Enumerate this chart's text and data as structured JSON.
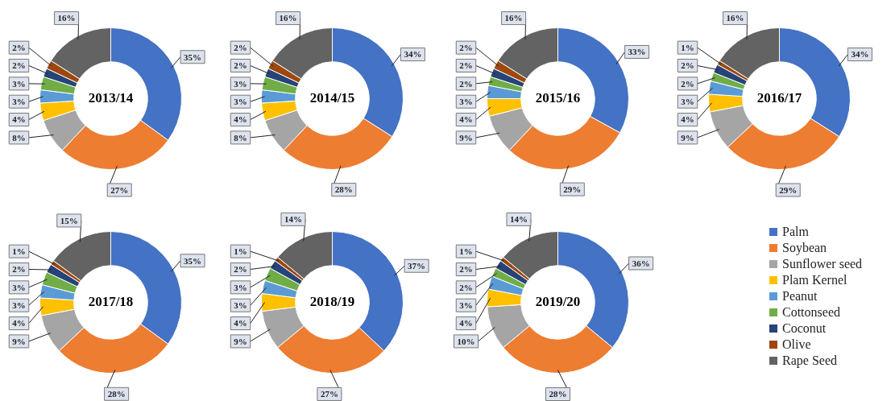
{
  "chart_data": [
    {
      "type": "donut",
      "title": "2013/14",
      "categories": [
        null,
        null,
        null,
        null,
        null,
        null,
        null,
        null,
        null
      ],
      "values": [
        35,
        27,
        8,
        4,
        3,
        3,
        2,
        2,
        16
      ],
      "value_labels": [
        "35%",
        "27%",
        "8%",
        "4%",
        "3%",
        "3%",
        "2%",
        "2%",
        "16%"
      ],
      "colors": [
        "#4472c4",
        "#ed7d31",
        "#a5a5a5",
        "#ffc000",
        "#5b9bd5",
        "#70ad47",
        "#264478",
        "#9e480e",
        "#636363"
      ]
    },
    {
      "type": "donut",
      "title": "2014/15",
      "categories": [
        null,
        null,
        null,
        null,
        null,
        null,
        null,
        null,
        null
      ],
      "values": [
        34,
        28,
        8,
        4,
        3,
        3,
        2,
        2,
        16
      ],
      "value_labels": [
        "34%",
        "28%",
        "8%",
        "4%",
        "3%",
        "3%",
        "2%",
        "2%",
        "16%"
      ],
      "colors": [
        "#4472c4",
        "#ed7d31",
        "#a5a5a5",
        "#ffc000",
        "#5b9bd5",
        "#70ad47",
        "#264478",
        "#9e480e",
        "#636363"
      ]
    },
    {
      "type": "donut",
      "title": "2015/16",
      "categories": [
        null,
        null,
        null,
        null,
        null,
        null,
        null,
        null,
        null
      ],
      "values": [
        33,
        29,
        9,
        4,
        3,
        2,
        2,
        2,
        16
      ],
      "value_labels": [
        "33%",
        "29%",
        "9%",
        "4%",
        "3%",
        "2%",
        "2%",
        "2%",
        "16%"
      ],
      "colors": [
        "#4472c4",
        "#ed7d31",
        "#a5a5a5",
        "#ffc000",
        "#5b9bd5",
        "#70ad47",
        "#264478",
        "#9e480e",
        "#636363"
      ]
    },
    {
      "type": "donut",
      "title": "2016/17",
      "categories": [
        null,
        null,
        null,
        null,
        null,
        null,
        null,
        null,
        null
      ],
      "values": [
        34,
        29,
        9,
        4,
        3,
        2,
        2,
        1,
        16
      ],
      "value_labels": [
        "34%",
        "29%",
        "9%",
        "4%",
        "3%",
        "2%",
        "2%",
        "1%",
        "16%"
      ],
      "colors": [
        "#4472c4",
        "#ed7d31",
        "#a5a5a5",
        "#ffc000",
        "#5b9bd5",
        "#70ad47",
        "#264478",
        "#9e480e",
        "#636363"
      ]
    },
    {
      "type": "donut",
      "title": "2017/18",
      "categories": [
        null,
        null,
        null,
        null,
        null,
        null,
        null,
        null,
        null
      ],
      "values": [
        35,
        28,
        9,
        4,
        3,
        3,
        2,
        1,
        15
      ],
      "value_labels": [
        "35%",
        "28%",
        "9%",
        "4%",
        "3%",
        "3%",
        "2%",
        "1%",
        "15%"
      ],
      "colors": [
        "#4472c4",
        "#ed7d31",
        "#a5a5a5",
        "#ffc000",
        "#5b9bd5",
        "#70ad47",
        "#264478",
        "#9e480e",
        "#636363"
      ]
    },
    {
      "type": "donut",
      "title": "2018/19",
      "categories": [
        null,
        null,
        null,
        null,
        null,
        null,
        null,
        null,
        null
      ],
      "values": [
        37,
        27,
        9,
        4,
        3,
        3,
        2,
        1,
        14
      ],
      "value_labels": [
        "37%",
        "27%",
        "9%",
        "4%",
        "3%",
        "3%",
        "2%",
        "1%",
        "14%"
      ],
      "colors": [
        "#4472c4",
        "#ed7d31",
        "#a5a5a5",
        "#ffc000",
        "#5b9bd5",
        "#70ad47",
        "#264478",
        "#9e480e",
        "#636363"
      ]
    },
    {
      "type": "donut",
      "title": "2019/20",
      "categories": [
        "Palm",
        "Soybean",
        "Sunflower seed",
        "Plam Kernel",
        "Peanut",
        "Cottonseed",
        "Coconut",
        "Olive",
        "Rape Seed"
      ],
      "values": [
        36,
        28,
        10,
        4,
        3,
        2,
        2,
        1,
        14
      ],
      "value_labels": [
        "36%",
        "28%",
        "10%",
        "4%",
        "3%",
        "2%",
        "2%",
        "1%",
        "14%"
      ],
      "colors": [
        "#4472c4",
        "#ed7d31",
        "#a5a5a5",
        "#ffc000",
        "#5b9bd5",
        "#70ad47",
        "#264478",
        "#9e480e",
        "#636363"
      ],
      "legend": "right"
    }
  ]
}
